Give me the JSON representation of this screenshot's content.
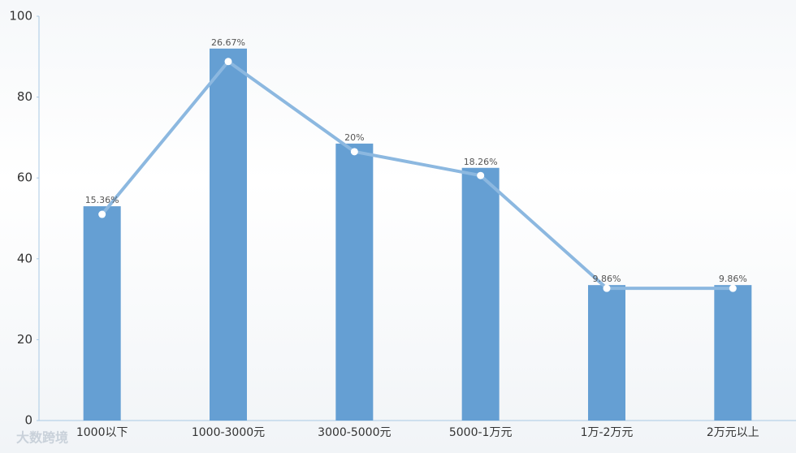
{
  "chart_data": {
    "type": "bar",
    "categories": [
      "1000以下",
      "1000-3000元",
      "3000-5000元",
      "5000-1万元",
      "1万-2万元",
      "2万元以上"
    ],
    "series": [
      {
        "type": "bar",
        "color": "#659fd3",
        "values": [
          53,
          92,
          68.5,
          62.5,
          33.5,
          33.5
        ]
      },
      {
        "type": "line",
        "color": "#8cb8e0",
        "values": [
          51,
          88.8,
          66.5,
          60.6,
          32.7,
          32.7
        ]
      },
      {
        "type": "label",
        "values": [
          15.36,
          26.67,
          20,
          18.26,
          9.86,
          9.86
        ],
        "value_labels": [
          "15.36%",
          "26.67%",
          "20%",
          "18.26%",
          "9.86%",
          "9.86%"
        ]
      }
    ],
    "ylim": [
      0,
      100
    ],
    "yticks": [
      0,
      20,
      40,
      60,
      80,
      100
    ],
    "grid": false,
    "watermark": "大数跨境"
  }
}
